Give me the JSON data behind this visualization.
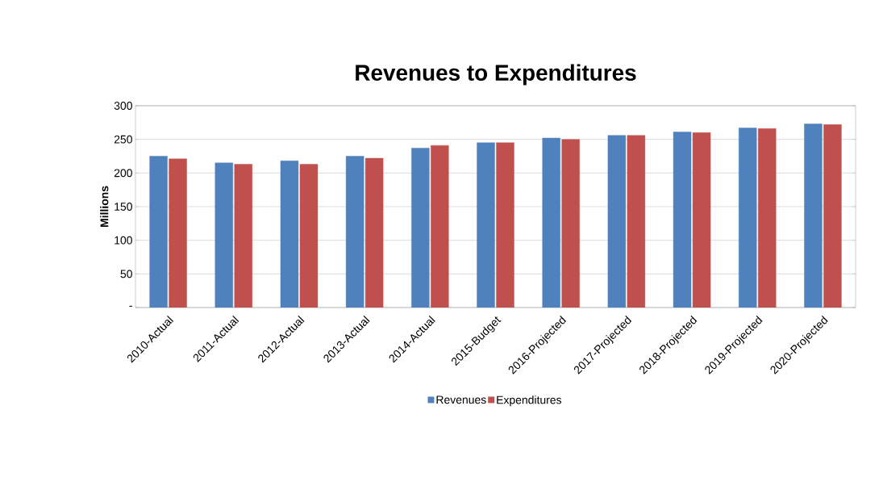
{
  "chart_data": {
    "type": "bar",
    "title": "Revenues to Expenditures",
    "ylabel": "Millions",
    "categories": [
      "2010-Actual",
      "2011-Actual",
      "2012-Actual",
      "2013-Actual",
      "2014-Actual",
      "2015-Budget",
      "2016-Projected",
      "2017-Projected",
      "2018-Projected",
      "2019-Projected",
      "2020-Projected"
    ],
    "series": [
      {
        "name": "Revenues",
        "color": "#4f81bd",
        "values": [
          225,
          215,
          218,
          225,
          237,
          245,
          252,
          256,
          261,
          267,
          273
        ]
      },
      {
        "name": "Expenditures",
        "color": "#c0504d",
        "values": [
          221,
          213,
          213,
          222,
          241,
          245,
          250,
          256,
          260,
          266,
          272
        ]
      }
    ],
    "ylim": [
      0,
      300
    ],
    "yticks": [
      {
        "value": 0,
        "label": "-"
      },
      50,
      100,
      150,
      200,
      250,
      300
    ],
    "grid": "y",
    "legend": "bottom"
  }
}
